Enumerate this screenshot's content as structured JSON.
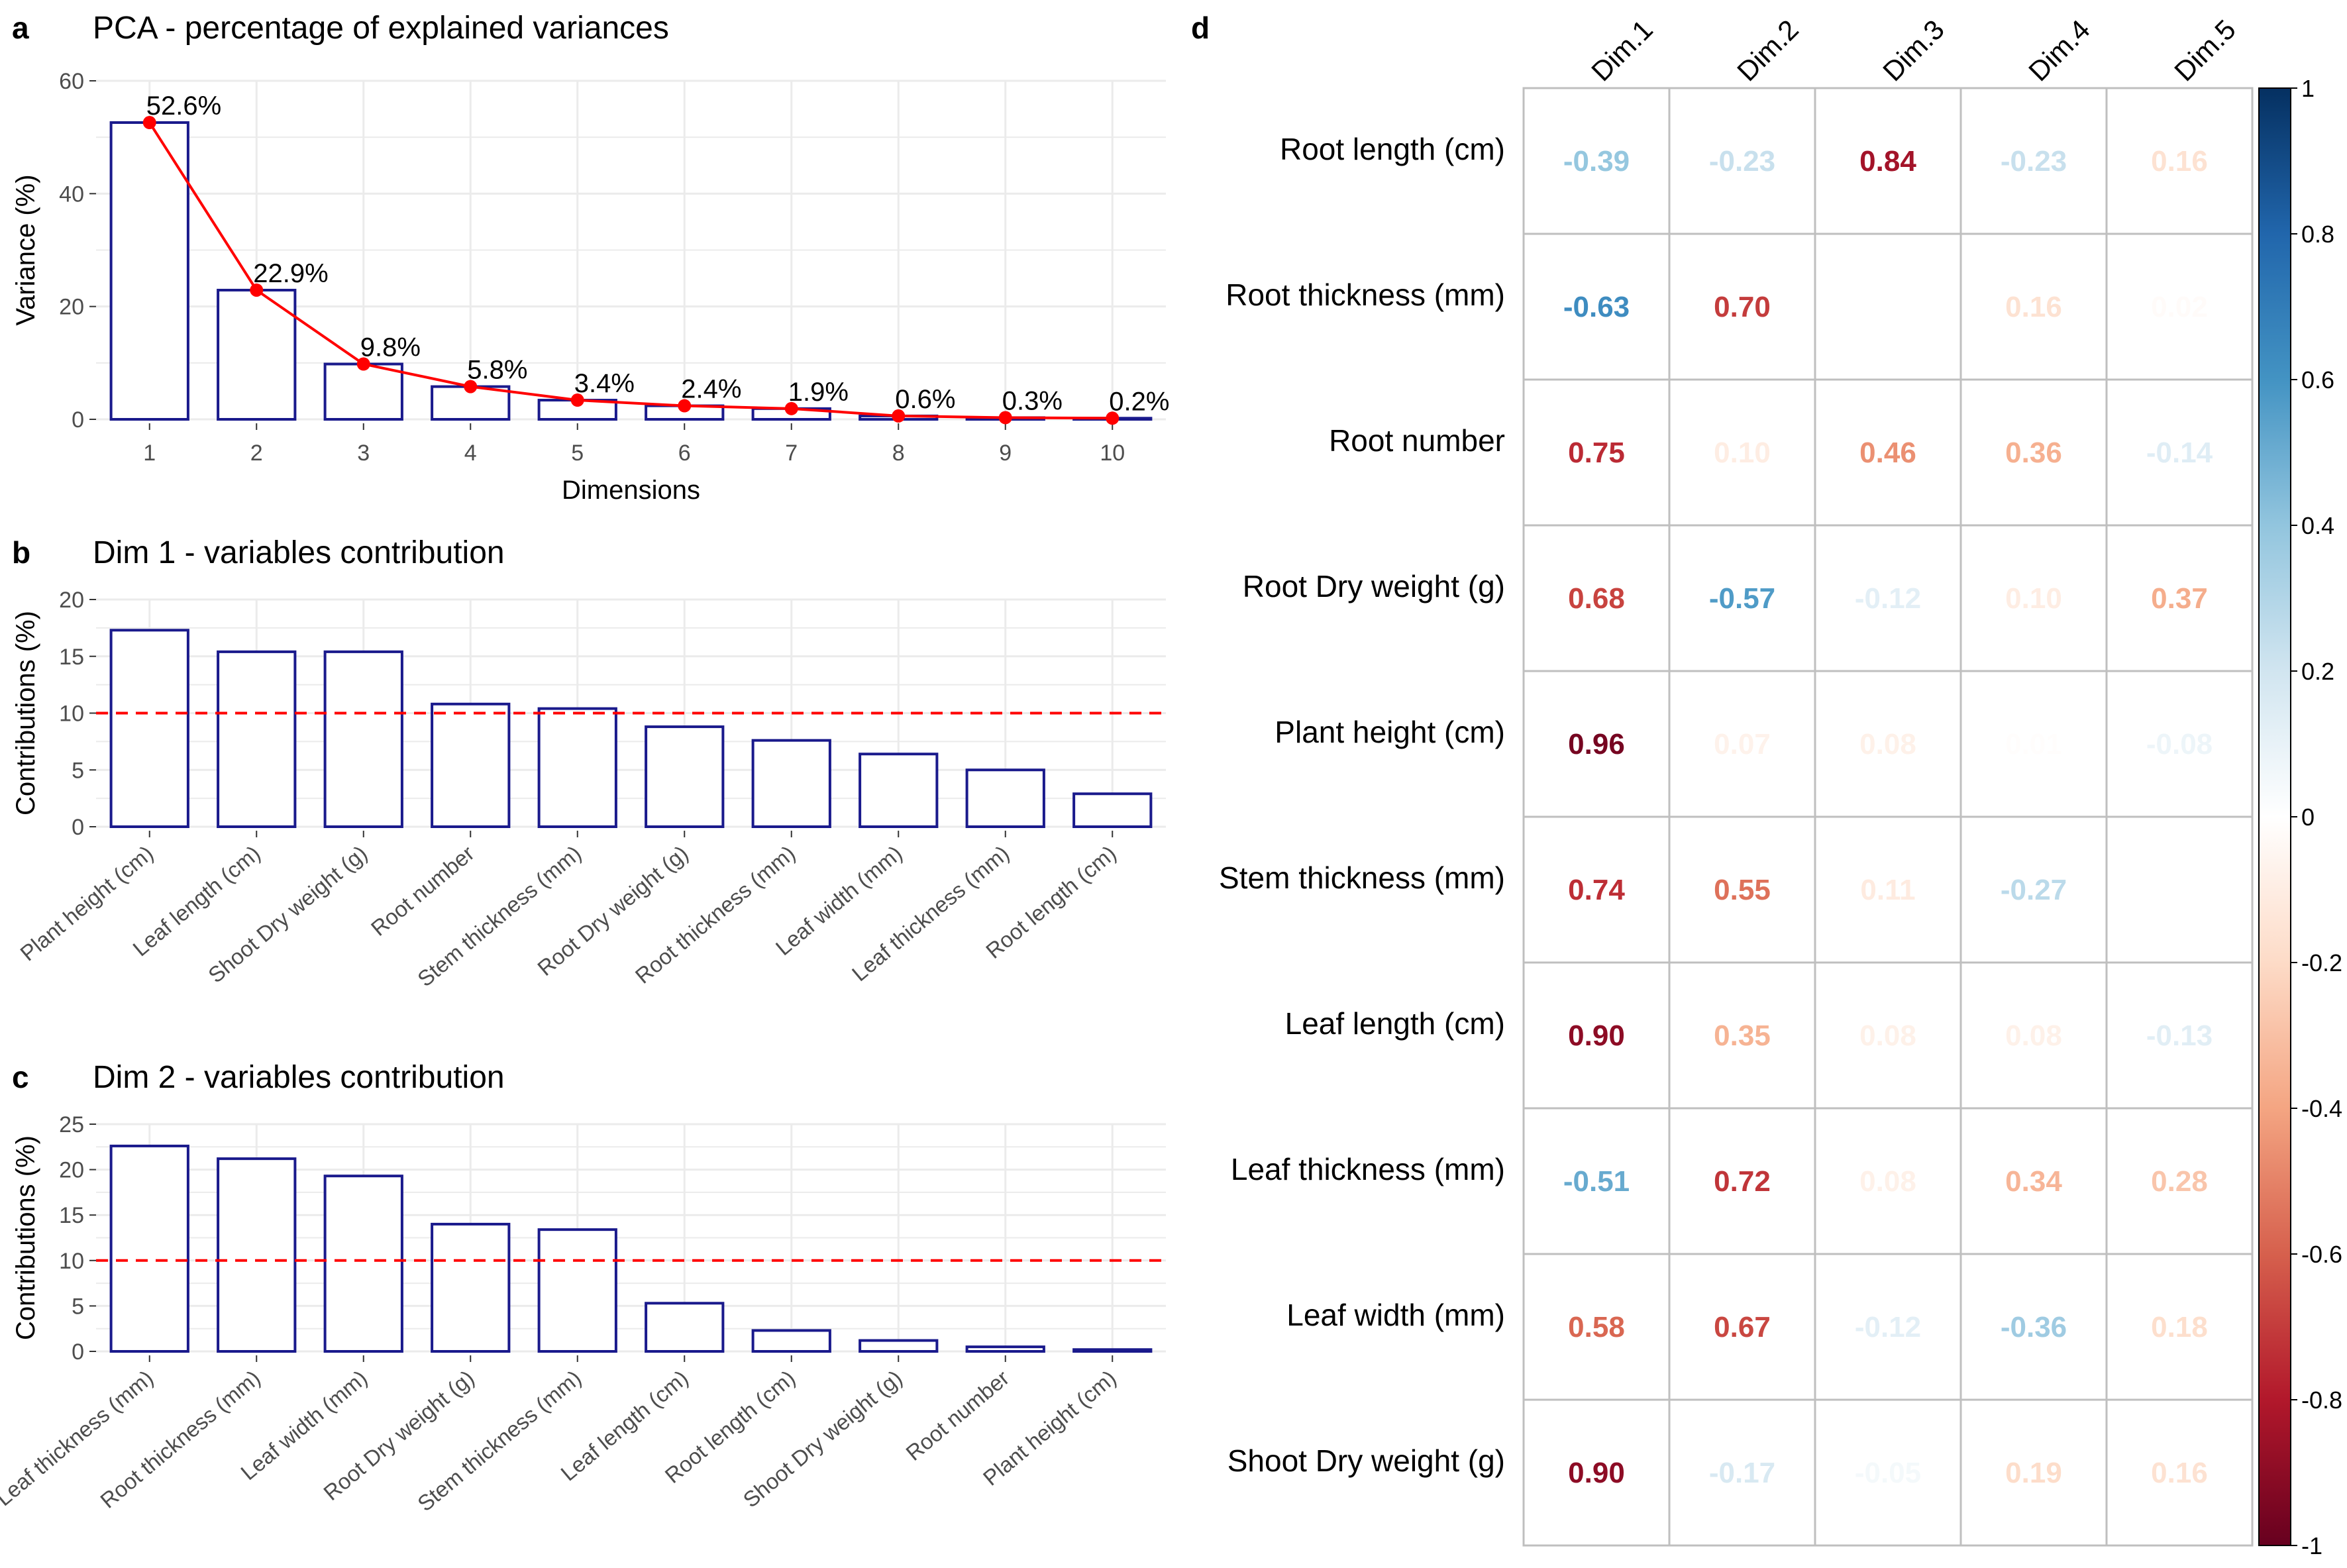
{
  "panels": {
    "a": {
      "letter": "a",
      "title": "PCA - percentage of explained variances"
    },
    "b": {
      "letter": "b",
      "title": "Dim 1 - variables contribution"
    },
    "c": {
      "letter": "c",
      "title": "Dim 2 - variables contribution"
    },
    "d": {
      "letter": "d"
    }
  },
  "colors": {
    "bar_outline": "#1a1a8c",
    "scree_line": "#ff0000",
    "reference_line": "#ff0000",
    "grid": "#ebebeb",
    "matrix_grid": "#bfbfbf"
  },
  "chart_data": [
    {
      "id": "a",
      "type": "bar",
      "title": "PCA - percentage of explained variances",
      "xlabel": "Dimensions",
      "ylabel": "Variance (%)",
      "categories": [
        "1",
        "2",
        "3",
        "4",
        "5",
        "6",
        "7",
        "8",
        "9",
        "10"
      ],
      "values": [
        52.6,
        22.9,
        9.8,
        5.8,
        3.4,
        2.4,
        1.9,
        0.6,
        0.3,
        0.2
      ],
      "labels": [
        "52.6%",
        "22.9%",
        "9.8%",
        "5.8%",
        "3.4%",
        "2.4%",
        "1.9%",
        "0.6%",
        "0.3%",
        "0.2%"
      ],
      "line_overlay": true,
      "ylim": [
        0,
        60
      ],
      "yticks": [
        0,
        20,
        40,
        60
      ],
      "grid": true
    },
    {
      "id": "b",
      "type": "bar",
      "title": "Dim 1 - variables contribution",
      "ylabel": "Contributions (%)",
      "categories": [
        "Plant height (cm)",
        "Leaf length (cm)",
        "Shoot Dry weight (g)",
        "Root number",
        "Stem thickness (mm)",
        "Root Dry weight (g)",
        "Root thickness (mm)",
        "Leaf width (mm)",
        "Leaf thickness (mm)",
        "Root length (cm)"
      ],
      "values": [
        17.3,
        15.4,
        15.4,
        10.8,
        10.4,
        8.8,
        7.6,
        6.4,
        5.0,
        2.9
      ],
      "reference_line": 10,
      "ylim": [
        0,
        20
      ],
      "yticks": [
        0,
        5,
        10,
        15,
        20
      ],
      "grid": true
    },
    {
      "id": "c",
      "type": "bar",
      "title": "Dim 2 - variables contribution",
      "ylabel": "Contributions (%)",
      "categories": [
        "Leaf thickness (mm)",
        "Root thickness (mm)",
        "Leaf width (mm)",
        "Root Dry weight (g)",
        "Stem thickness (mm)",
        "Leaf length (cm)",
        "Root length (cm)",
        "Shoot Dry weight (g)",
        "Root number",
        "Plant height (cm)"
      ],
      "values": [
        22.6,
        21.2,
        19.3,
        14.0,
        13.4,
        5.3,
        2.3,
        1.2,
        0.5,
        0.2
      ],
      "reference_line": 10,
      "ylim": [
        0,
        25
      ],
      "yticks": [
        0,
        5,
        10,
        15,
        20,
        25
      ],
      "grid": true
    },
    {
      "id": "d",
      "type": "heatmap",
      "columns": [
        "Dim.1",
        "Dim.2",
        "Dim.3",
        "Dim.4",
        "Dim.5"
      ],
      "rows": [
        "Root length (cm)",
        "Root thickness (mm)",
        "Root number",
        "Root Dry weight (g)",
        "Plant height (cm)",
        "Stem thickness (mm)",
        "Leaf length (cm)",
        "Leaf thickness (mm)",
        "Leaf width (mm)",
        "Shoot Dry weight (g)"
      ],
      "values": [
        [
          -0.39,
          -0.23,
          0.84,
          -0.23,
          0.16
        ],
        [
          -0.63,
          0.7,
          0.0,
          0.16,
          0.02
        ],
        [
          0.75,
          0.1,
          0.46,
          0.36,
          -0.14
        ],
        [
          0.68,
          -0.57,
          -0.12,
          0.1,
          0.37
        ],
        [
          0.96,
          0.07,
          0.08,
          0.01,
          -0.08
        ],
        [
          0.74,
          0.55,
          0.11,
          -0.27,
          0.0
        ],
        [
          0.9,
          0.35,
          0.08,
          0.08,
          -0.13
        ],
        [
          -0.51,
          0.72,
          0.08,
          0.34,
          0.28
        ],
        [
          0.58,
          0.67,
          -0.12,
          -0.36,
          0.18
        ],
        [
          0.9,
          -0.17,
          -0.05,
          0.19,
          0.16
        ]
      ],
      "colorbar": {
        "range": [
          -1,
          1
        ],
        "ticks": [
          "1",
          "0.8",
          "0.6",
          "0.4",
          "0.2",
          "0",
          "-0.2",
          "-0.4",
          "-0.6",
          "-0.8",
          "-1"
        ],
        "colors": [
          "#67001f",
          "#b2182b",
          "#d6604d",
          "#f4a582",
          "#fddbc7",
          "#ffffff",
          "#d1e5f0",
          "#92c5de",
          "#4393c3",
          "#2166ac",
          "#053061"
        ]
      }
    }
  ]
}
